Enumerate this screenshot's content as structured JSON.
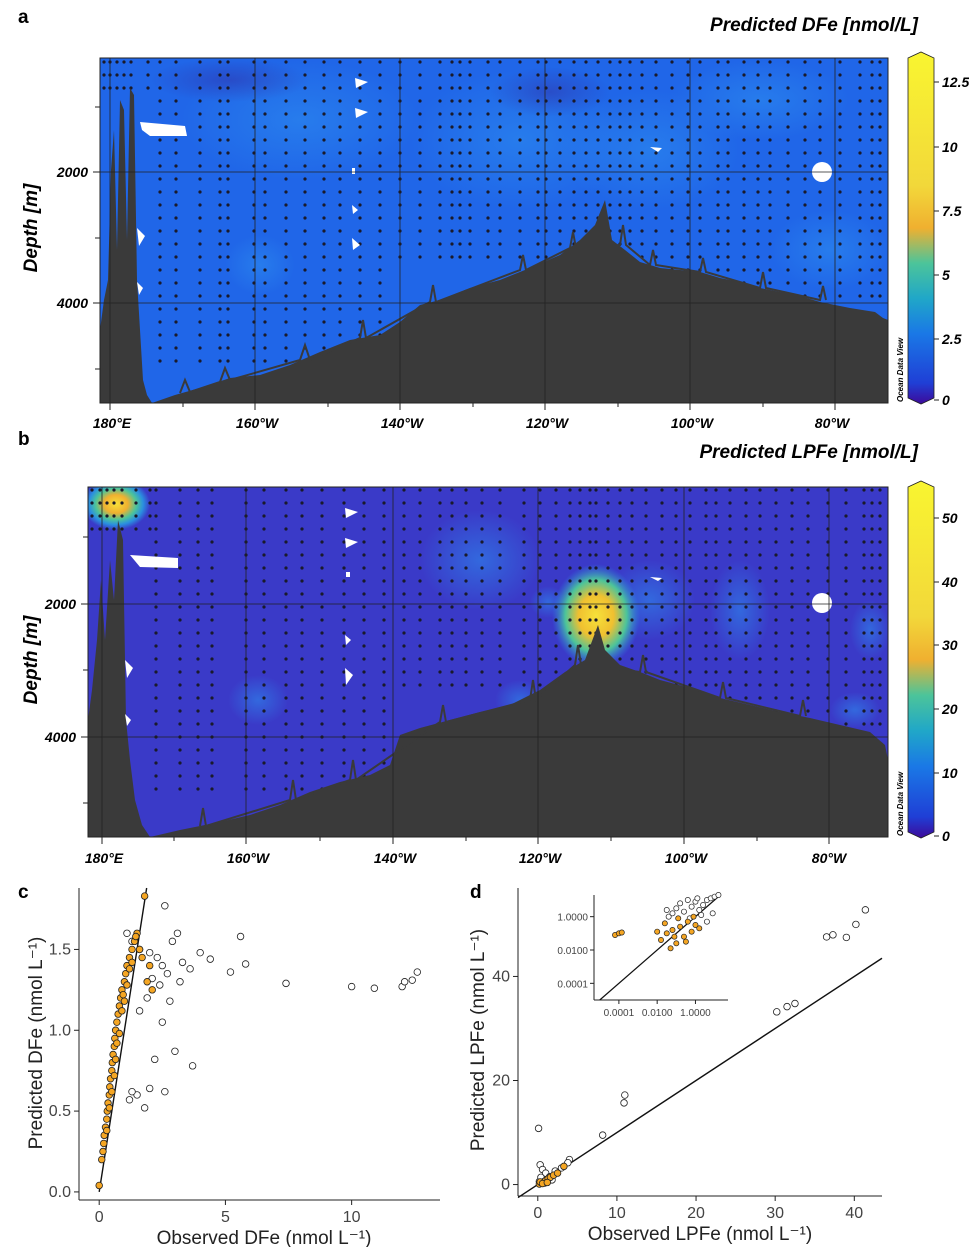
{
  "chart_data": [
    {
      "panel": "a",
      "type": "heatmap",
      "title": "Predicted DFe [nmol/L]",
      "ylabel": "Depth [m]",
      "x_ticks": [
        "180°E",
        "160°W",
        "140°W",
        "120°W",
        "100°W",
        "80°W"
      ],
      "y_ticks": [
        "2000",
        "4000"
      ],
      "colorbar_ticks": [
        "12.5",
        "10",
        "7.5",
        "5",
        "2.5",
        "0"
      ],
      "colorbar_range": [
        0,
        13.5
      ],
      "watermark": "Ocean Data View",
      "grid": true
    },
    {
      "panel": "b",
      "type": "heatmap",
      "title": "Predicted LPFe [nmol/L]",
      "ylabel": "Depth [m]",
      "x_ticks": [
        "180°E",
        "160°W",
        "140°W",
        "120°W",
        "100°W",
        "80°W"
      ],
      "y_ticks": [
        "2000",
        "4000"
      ],
      "colorbar_ticks": [
        "50",
        "40",
        "30",
        "20",
        "10",
        "0"
      ],
      "colorbar_range": [
        0,
        55
      ],
      "watermark": "Ocean Data View",
      "grid": true,
      "hotspots": [
        {
          "location": "180°E near surface",
          "approx_value": 35
        },
        {
          "location": "~112°W, ~2400 m",
          "approx_value": 40
        }
      ]
    },
    {
      "panel": "c",
      "type": "scatter",
      "xlabel": "Observed DFe (nmol L⁻¹)",
      "ylabel": "Predicted DFe (nmol L⁻¹)",
      "xlim": [
        -0.8,
        13.5
      ],
      "ylim": [
        -0.05,
        1.88
      ],
      "x_ticks": [
        0,
        5,
        10
      ],
      "y_ticks": [
        0.0,
        0.5,
        1.0,
        1.5
      ],
      "reference_line": "1:1",
      "series": [
        {
          "color": "#F5A623",
          "description": "orange filled points",
          "points": [
            [
              0.0,
              0.04
            ],
            [
              0.1,
              0.2
            ],
            [
              0.18,
              0.3
            ],
            [
              0.2,
              0.35
            ],
            [
              0.25,
              0.4
            ],
            [
              0.3,
              0.45
            ],
            [
              0.32,
              0.5
            ],
            [
              0.35,
              0.55
            ],
            [
              0.4,
              0.6
            ],
            [
              0.42,
              0.65
            ],
            [
              0.45,
              0.7
            ],
            [
              0.5,
              0.75
            ],
            [
              0.52,
              0.8
            ],
            [
              0.55,
              0.85
            ],
            [
              0.6,
              0.9
            ],
            [
              0.62,
              0.95
            ],
            [
              0.65,
              1.0
            ],
            [
              0.7,
              1.05
            ],
            [
              0.75,
              1.1
            ],
            [
              0.8,
              1.15
            ],
            [
              0.85,
              1.2
            ],
            [
              0.9,
              1.25
            ],
            [
              1.0,
              1.3
            ],
            [
              1.05,
              1.35
            ],
            [
              1.1,
              1.4
            ],
            [
              1.2,
              1.45
            ],
            [
              1.3,
              1.5
            ],
            [
              1.4,
              1.55
            ],
            [
              1.5,
              1.6
            ],
            [
              1.8,
              1.83
            ],
            [
              0.3,
              0.38
            ],
            [
              0.5,
              0.62
            ],
            [
              0.7,
              0.92
            ],
            [
              0.9,
              1.12
            ],
            [
              1.1,
              1.28
            ],
            [
              1.3,
              1.42
            ],
            [
              1.6,
              1.5
            ],
            [
              1.7,
              1.45
            ],
            [
              1.9,
              1.3
            ],
            [
              2.1,
              1.25
            ],
            [
              0.6,
              0.72
            ],
            [
              0.8,
              0.98
            ],
            [
              1.0,
              1.18
            ],
            [
              1.2,
              1.38
            ],
            [
              0.15,
              0.25
            ],
            [
              0.4,
              0.52
            ],
            [
              0.65,
              0.82
            ],
            [
              0.95,
              1.22
            ],
            [
              1.45,
              1.58
            ],
            [
              2.0,
              1.4
            ]
          ]
        },
        {
          "color": "#FFFFFF",
          "description": "white open points",
          "points": [
            [
              1.1,
              1.6
            ],
            [
              1.3,
              1.55
            ],
            [
              1.6,
              1.5
            ],
            [
              2.0,
              1.48
            ],
            [
              2.3,
              1.45
            ],
            [
              2.5,
              1.4
            ],
            [
              2.7,
              1.35
            ],
            [
              2.9,
              1.55
            ],
            [
              3.1,
              1.6
            ],
            [
              3.3,
              1.42
            ],
            [
              3.6,
              1.38
            ],
            [
              4.0,
              1.48
            ],
            [
              4.4,
              1.44
            ],
            [
              5.2,
              1.36
            ],
            [
              5.6,
              1.58
            ],
            [
              5.8,
              1.41
            ],
            [
              2.6,
              1.77
            ],
            [
              7.4,
              1.29
            ],
            [
              10.0,
              1.27
            ],
            [
              10.9,
              1.26
            ],
            [
              12.0,
              1.27
            ],
            [
              12.1,
              1.3
            ],
            [
              12.4,
              1.31
            ],
            [
              12.6,
              1.36
            ],
            [
              3.0,
              0.87
            ],
            [
              3.7,
              0.78
            ],
            [
              2.0,
              0.64
            ],
            [
              2.6,
              0.62
            ],
            [
              1.8,
              0.52
            ],
            [
              1.5,
              0.6
            ],
            [
              1.3,
              0.62
            ],
            [
              1.2,
              0.57
            ],
            [
              2.2,
              0.82
            ],
            [
              2.5,
              1.05
            ],
            [
              1.6,
              1.12
            ],
            [
              1.9,
              1.2
            ],
            [
              2.1,
              1.32
            ],
            [
              2.4,
              1.28
            ],
            [
              2.8,
              1.18
            ],
            [
              3.2,
              1.3
            ]
          ]
        }
      ]
    },
    {
      "panel": "d",
      "type": "scatter",
      "xlabel": "Observed LPFe (nmol L⁻¹)",
      "ylabel": "Predicted LPFe (nmol L⁻¹)",
      "xlim": [
        -2.5,
        43.5
      ],
      "ylim": [
        -2.2,
        57
      ],
      "x_ticks": [
        0,
        10,
        20,
        30,
        40
      ],
      "y_ticks": [
        0,
        20,
        40
      ],
      "reference_line": "1:1",
      "series": [
        {
          "color": "#F5A623",
          "description": "orange filled points",
          "points": [
            [
              0.2,
              0.1
            ],
            [
              0.5,
              0.3
            ],
            [
              0.8,
              0.6
            ],
            [
              1.0,
              0.8
            ],
            [
              1.3,
              1.1
            ],
            [
              1.6,
              1.4
            ],
            [
              2.0,
              1.8
            ],
            [
              2.5,
              2.2
            ],
            [
              3.3,
              3.5
            ],
            [
              0.3,
              0.5
            ],
            [
              0.6,
              0.2
            ],
            [
              1.2,
              0.4
            ]
          ]
        },
        {
          "color": "#FFFFFF",
          "description": "white open points",
          "points": [
            [
              0.1,
              10.8
            ],
            [
              0.3,
              3.8
            ],
            [
              0.6,
              2.9
            ],
            [
              1.0,
              2.2
            ],
            [
              1.5,
              1.5
            ],
            [
              2.2,
              2.6
            ],
            [
              3.0,
              3.2
            ],
            [
              4.0,
              4.8
            ],
            [
              3.8,
              4.2
            ],
            [
              8.2,
              9.5
            ],
            [
              10.9,
              15.7
            ],
            [
              11.0,
              17.2
            ],
            [
              30.2,
              33.2
            ],
            [
              31.5,
              34.2
            ],
            [
              32.5,
              34.8
            ],
            [
              36.5,
              47.6
            ],
            [
              37.3,
              48.0
            ],
            [
              39.0,
              47.5
            ],
            [
              40.2,
              50.0
            ],
            [
              41.4,
              52.8
            ],
            [
              0.2,
              0.6
            ],
            [
              0.4,
              1.4
            ],
            [
              0.9,
              0.3
            ],
            [
              1.8,
              0.9
            ]
          ]
        }
      ],
      "inset": {
        "scale": "log",
        "x_ticks": [
          "0.0001",
          "0.0100",
          "1.0000"
        ],
        "y_ticks": [
          "1.0000",
          "0.0100",
          "0.0001"
        ],
        "xlim_log10": [
          -5.3,
          1.7
        ],
        "ylim_log10": [
          -5.0,
          1.3
        ],
        "series": [
          {
            "color": "#F5A623",
            "points_log10": [
              [
                -4.2,
                -1.1
              ],
              [
                -4.0,
                -1.0
              ],
              [
                -3.85,
                -0.95
              ],
              [
                -1.8,
                -1.4
              ],
              [
                -1.5,
                -1.0
              ],
              [
                -1.2,
                -0.8
              ],
              [
                -1.0,
                -1.6
              ],
              [
                -0.8,
                -0.6
              ],
              [
                -0.6,
                -1.2
              ],
              [
                -0.4,
                -0.3
              ],
              [
                -0.2,
                -0.9
              ],
              [
                0.0,
                -0.5
              ],
              [
                -1.6,
                -0.4
              ],
              [
                -1.3,
                -1.9
              ],
              [
                -0.9,
                -0.1
              ],
              [
                -0.5,
                -1.5
              ],
              [
                -0.1,
                0.0
              ],
              [
                0.2,
                -0.7
              ],
              [
                -2.0,
                -0.9
              ],
              [
                -1.1,
                -1.2
              ]
            ]
          },
          {
            "color": "#FFFFFF",
            "points_log10": [
              [
                -1.0,
                0.5
              ],
              [
                -0.8,
                0.8
              ],
              [
                -0.6,
                0.3
              ],
              [
                -0.4,
                1.0
              ],
              [
                -0.2,
                0.6
              ],
              [
                0.0,
                0.9
              ],
              [
                0.2,
                0.4
              ],
              [
                0.4,
                0.7
              ],
              [
                0.6,
                1.0
              ],
              [
                0.8,
                1.1
              ],
              [
                1.0,
                1.2
              ],
              [
                1.2,
                1.3
              ],
              [
                -1.4,
                0.0
              ],
              [
                -1.2,
                0.2
              ],
              [
                0.3,
                0.1
              ],
              [
                0.6,
                -0.3
              ],
              [
                -0.3,
                -0.1
              ],
              [
                0.9,
                0.2
              ],
              [
                -1.5,
                0.4
              ],
              [
                0.1,
                1.1
              ]
            ]
          }
        ]
      }
    }
  ]
}
